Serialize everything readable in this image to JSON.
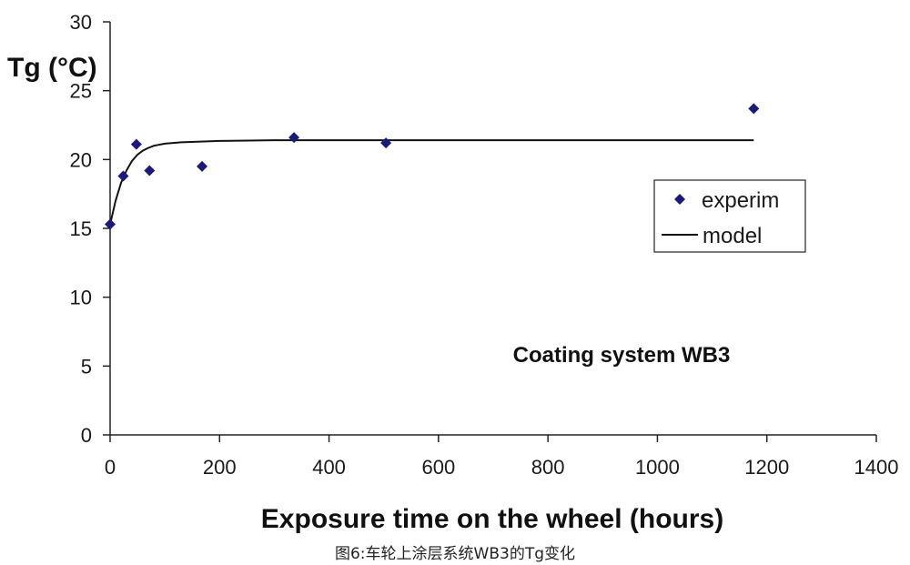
{
  "chart_data": {
    "type": "scatter",
    "title": "",
    "xlabel": "Exposure time on the wheel (hours)",
    "ylabel": "Tg (°C)",
    "xlim": [
      0,
      1400
    ],
    "ylim": [
      0,
      30
    ],
    "x_ticks": [
      0,
      200,
      400,
      600,
      800,
      1000,
      1200,
      1400
    ],
    "y_ticks": [
      0,
      5,
      10,
      15,
      20,
      25,
      30
    ],
    "grid": false,
    "legend_position": "right",
    "series": [
      {
        "name": "experim",
        "kind": "scatter",
        "marker": "diamond",
        "color": "#1a1a7a",
        "x": [
          0,
          24,
          48,
          72,
          168,
          336,
          504,
          1176
        ],
        "y": [
          15.3,
          18.8,
          21.1,
          19.2,
          19.5,
          21.6,
          21.2,
          23.7
        ]
      },
      {
        "name": "model",
        "kind": "line",
        "color": "#111111",
        "x": [
          0,
          10,
          20,
          30,
          40,
          50,
          60,
          70,
          80,
          100,
          130,
          160,
          200,
          300,
          500,
          800,
          1176
        ],
        "y": [
          15.3,
          17.0,
          18.3,
          19.2,
          19.9,
          20.35,
          20.65,
          20.85,
          21.0,
          21.15,
          21.25,
          21.3,
          21.35,
          21.4,
          21.4,
          21.4,
          21.4
        ]
      }
    ],
    "annotation": "Coating system WB3"
  },
  "caption": "图6:车轮上涂层系统WB3的Tg变化"
}
